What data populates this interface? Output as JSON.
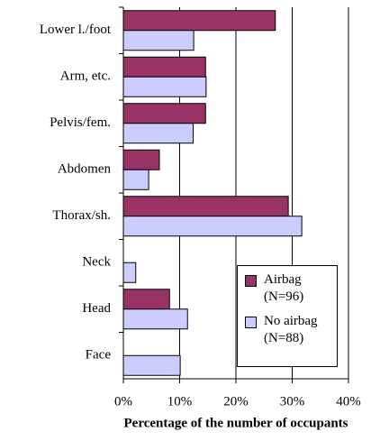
{
  "chart_data": {
    "type": "bar",
    "orientation": "horizontal",
    "x_label": "Percentage of the number of occupants",
    "categories": [
      "Lower l./foot",
      "Arm, etc.",
      "Pelvis/fem.",
      "Abdomen",
      "Thorax/sh.",
      "Neck",
      "Head",
      "Face"
    ],
    "series": [
      {
        "name": "Airbag (N=96)",
        "color": "#993366",
        "values": [
          27.0,
          14.6,
          14.6,
          6.4,
          29.3,
          0,
          8.2,
          0
        ]
      },
      {
        "name": "No airbag (N=88)",
        "color": "#ccccff",
        "values": [
          12.5,
          14.7,
          12.4,
          4.5,
          31.7,
          2.2,
          11.4,
          10.1
        ]
      }
    ],
    "xlim": [
      0,
      40
    ],
    "xticks": [
      {
        "value": 0,
        "label": "0%"
      },
      {
        "value": 10,
        "label": "10%"
      },
      {
        "value": 20,
        "label": "20%"
      },
      {
        "value": 30,
        "label": "30%"
      },
      {
        "value": 40,
        "label": "40%"
      }
    ],
    "grid": true
  }
}
